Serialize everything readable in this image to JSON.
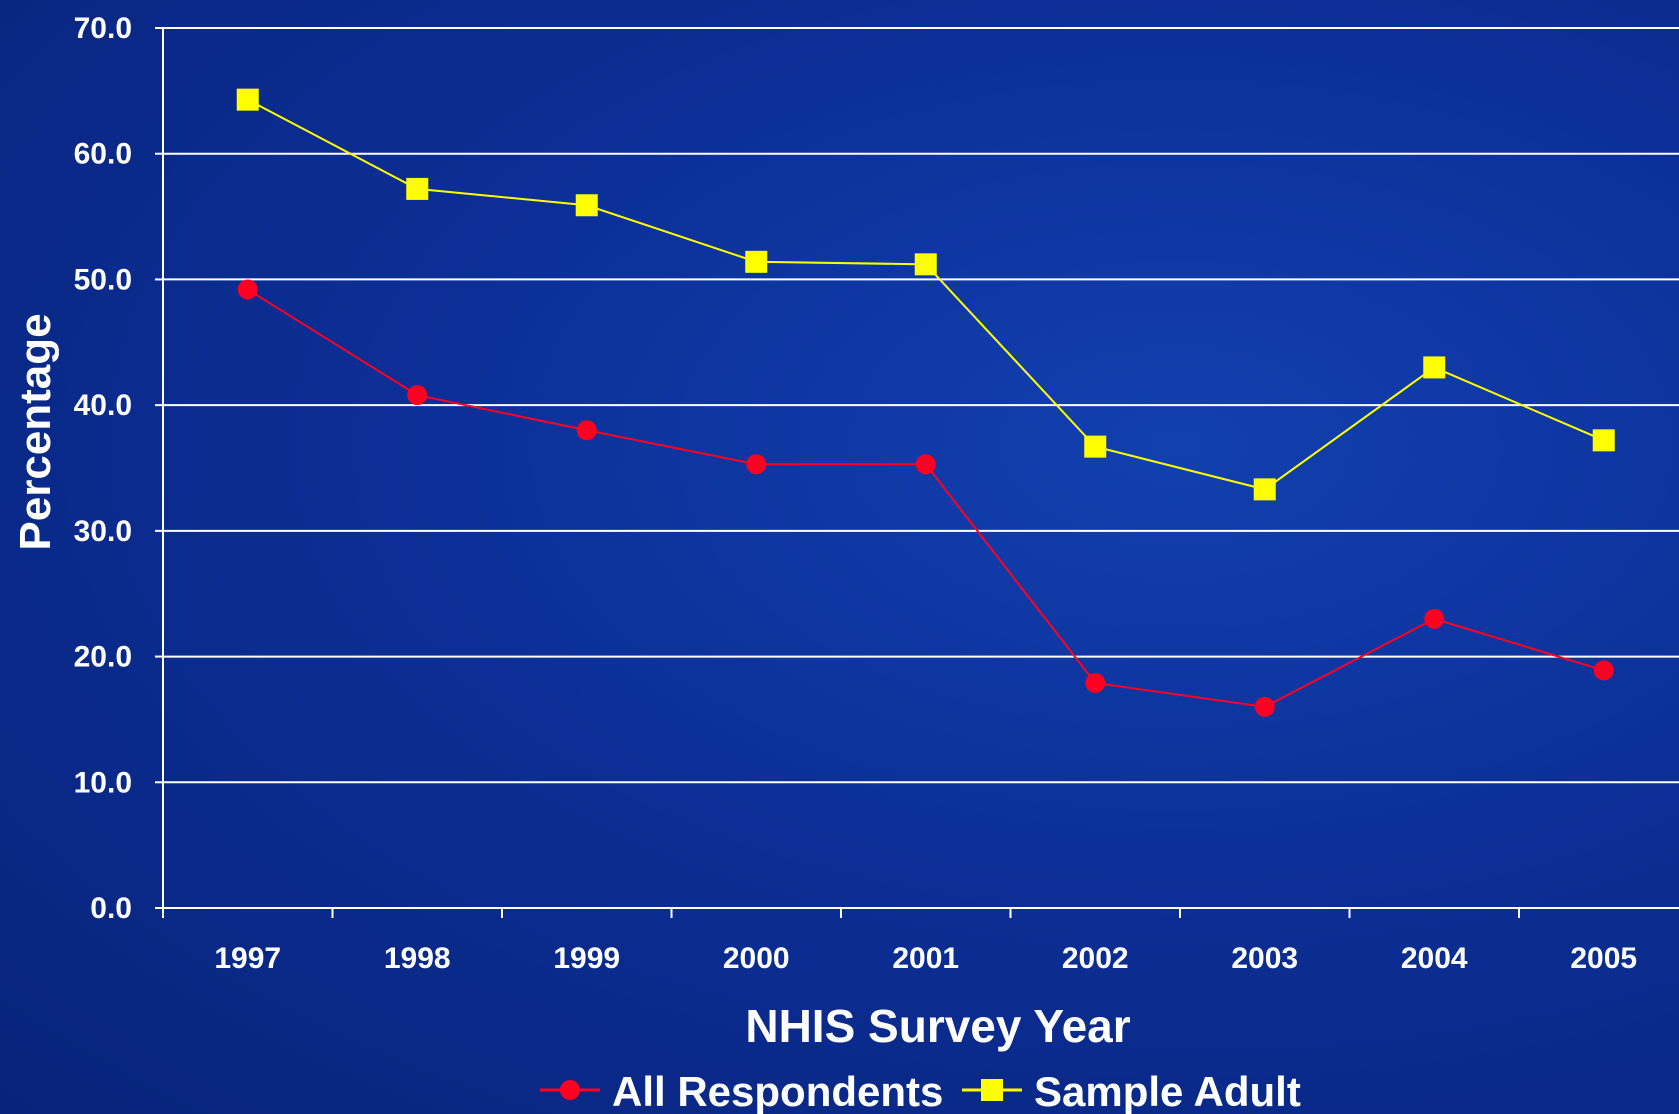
{
  "colors": {
    "background": "#0c2f97",
    "grid": "#ffffff",
    "axis_text": "#ffffff",
    "series_all_respondents": "#ff0022",
    "series_sample_adult": "#ffff00"
  },
  "chart_data": {
    "type": "line",
    "title": "",
    "xlabel": "NHIS Survey Year",
    "ylabel": "Percentage",
    "categories": [
      "1997",
      "1998",
      "1999",
      "2000",
      "2001",
      "2002",
      "2003",
      "2004",
      "2005"
    ],
    "ylim": [
      0,
      70
    ],
    "yticks": [
      "0.0",
      "10.0",
      "20.0",
      "30.0",
      "40.0",
      "50.0",
      "60.0",
      "70.0"
    ],
    "grid": true,
    "legend_position": "bottom",
    "series": [
      {
        "name": "All Respondents",
        "marker": "circle",
        "values": [
          49.2,
          40.8,
          38.0,
          35.3,
          35.3,
          17.9,
          16.0,
          23.0,
          18.9
        ]
      },
      {
        "name": "Sample Adult",
        "marker": "square",
        "values": [
          64.3,
          57.2,
          55.9,
          51.4,
          51.2,
          36.7,
          33.3,
          43.0,
          37.2
        ]
      }
    ]
  }
}
